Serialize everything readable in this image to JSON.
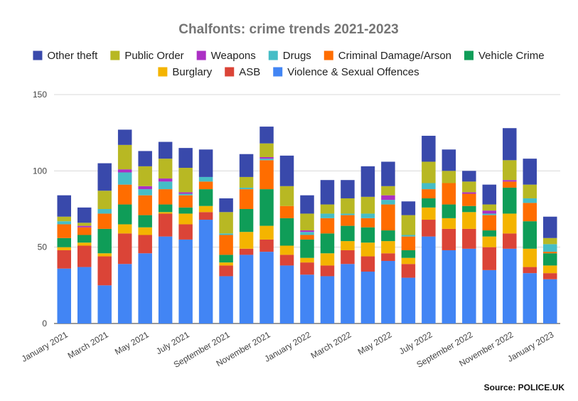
{
  "chart_data": {
    "type": "bar",
    "stacked": true,
    "title": "Chalfonts: crime trends 2021-2023",
    "source": "Source: POLICE.UK",
    "ylim": [
      0,
      150
    ],
    "yticks": [
      0,
      50,
      100,
      150
    ],
    "grid": true,
    "legend_position": "top",
    "categories": [
      "January 2021",
      "February 2021",
      "March 2021",
      "April 2021",
      "May 2021",
      "June 2021",
      "July 2021",
      "August 2021",
      "September 2021",
      "October 2021",
      "November 2021",
      "December 2021",
      "January 2022",
      "February 2022",
      "March 2022",
      "April 2022",
      "May 2022",
      "June 2022",
      "July 2022",
      "August 2022",
      "September 2022",
      "October 2022",
      "November 2022",
      "December 2022",
      "January 2023"
    ],
    "x_tick_labels": [
      "January 2021",
      "",
      "March 2021",
      "",
      "May 2021",
      "",
      "July 2021",
      "",
      "September 2021",
      "",
      "November 2021",
      "",
      "January 2022",
      "",
      "March 2022",
      "",
      "May 2022",
      "",
      "July 2022",
      "",
      "September 2022",
      "",
      "November 2022",
      "",
      "January 2023"
    ],
    "series": [
      {
        "name": "Violence & Sexual Offences",
        "color": "#4285F4",
        "values": [
          36,
          37,
          25,
          39,
          46,
          57,
          55,
          68,
          31,
          45,
          47,
          38,
          32,
          31,
          39,
          34,
          41,
          30,
          57,
          48,
          49,
          35,
          49,
          33,
          29
        ]
      },
      {
        "name": "ASB",
        "color": "#DB4437",
        "values": [
          12,
          14,
          19,
          20,
          12,
          15,
          10,
          5,
          7,
          4,
          8,
          7,
          8,
          7,
          9,
          10,
          5,
          9,
          11,
          14,
          13,
          15,
          10,
          4,
          4
        ]
      },
      {
        "name": "Burglary",
        "color": "#F4B400",
        "values": [
          2,
          2,
          2,
          6,
          5,
          1,
          7,
          4,
          2,
          11,
          9,
          6,
          3,
          8,
          6,
          9,
          8,
          4,
          8,
          7,
          11,
          7,
          13,
          12,
          5
        ]
      },
      {
        "name": "Vehicle Crime",
        "color": "#0F9D58",
        "values": [
          6,
          5,
          16,
          13,
          8,
          5,
          4,
          11,
          5,
          15,
          24,
          18,
          12,
          13,
          10,
          10,
          7,
          5,
          6,
          9,
          4,
          4,
          17,
          18,
          8
        ]
      },
      {
        "name": "Criminal Damage/Arson",
        "color": "#FF6D00",
        "values": [
          9,
          5,
          10,
          13,
          13,
          10,
          8,
          5,
          13,
          13,
          19,
          8,
          3,
          10,
          7,
          6,
          17,
          9,
          6,
          14,
          8,
          10,
          4,
          12,
          1
        ]
      },
      {
        "name": "Drugs",
        "color": "#46BDC6",
        "values": [
          2,
          0,
          3,
          8,
          4,
          5,
          1,
          3,
          1,
          1,
          1,
          0,
          2,
          3,
          1,
          3,
          3,
          1,
          4,
          0,
          0,
          1,
          0,
          3,
          5
        ]
      },
      {
        "name": "Weapons",
        "color": "#AB30C4",
        "values": [
          0,
          1,
          0,
          2,
          2,
          2,
          1,
          0,
          0,
          0,
          1,
          0,
          1,
          0,
          0,
          0,
          3,
          0,
          0,
          0,
          1,
          2,
          1,
          0,
          0
        ]
      },
      {
        "name": "Public Order",
        "color": "#B8B823",
        "values": [
          3,
          2,
          12,
          16,
          13,
          13,
          16,
          0,
          14,
          7,
          9,
          13,
          11,
          6,
          10,
          11,
          6,
          13,
          14,
          8,
          7,
          4,
          13,
          9,
          4
        ]
      },
      {
        "name": "Other theft",
        "color": "#3949AB",
        "values": [
          14,
          10,
          18,
          10,
          10,
          11,
          13,
          18,
          9,
          15,
          11,
          20,
          12,
          16,
          12,
          20,
          16,
          9,
          17,
          14,
          7,
          13,
          21,
          17,
          14
        ]
      }
    ],
    "legend_order": [
      "Other theft",
      "Public Order",
      "Weapons",
      "Drugs",
      "Criminal Damage/Arson",
      "Vehicle Crime",
      "Burglary",
      "ASB",
      "Violence & Sexual Offences"
    ]
  }
}
